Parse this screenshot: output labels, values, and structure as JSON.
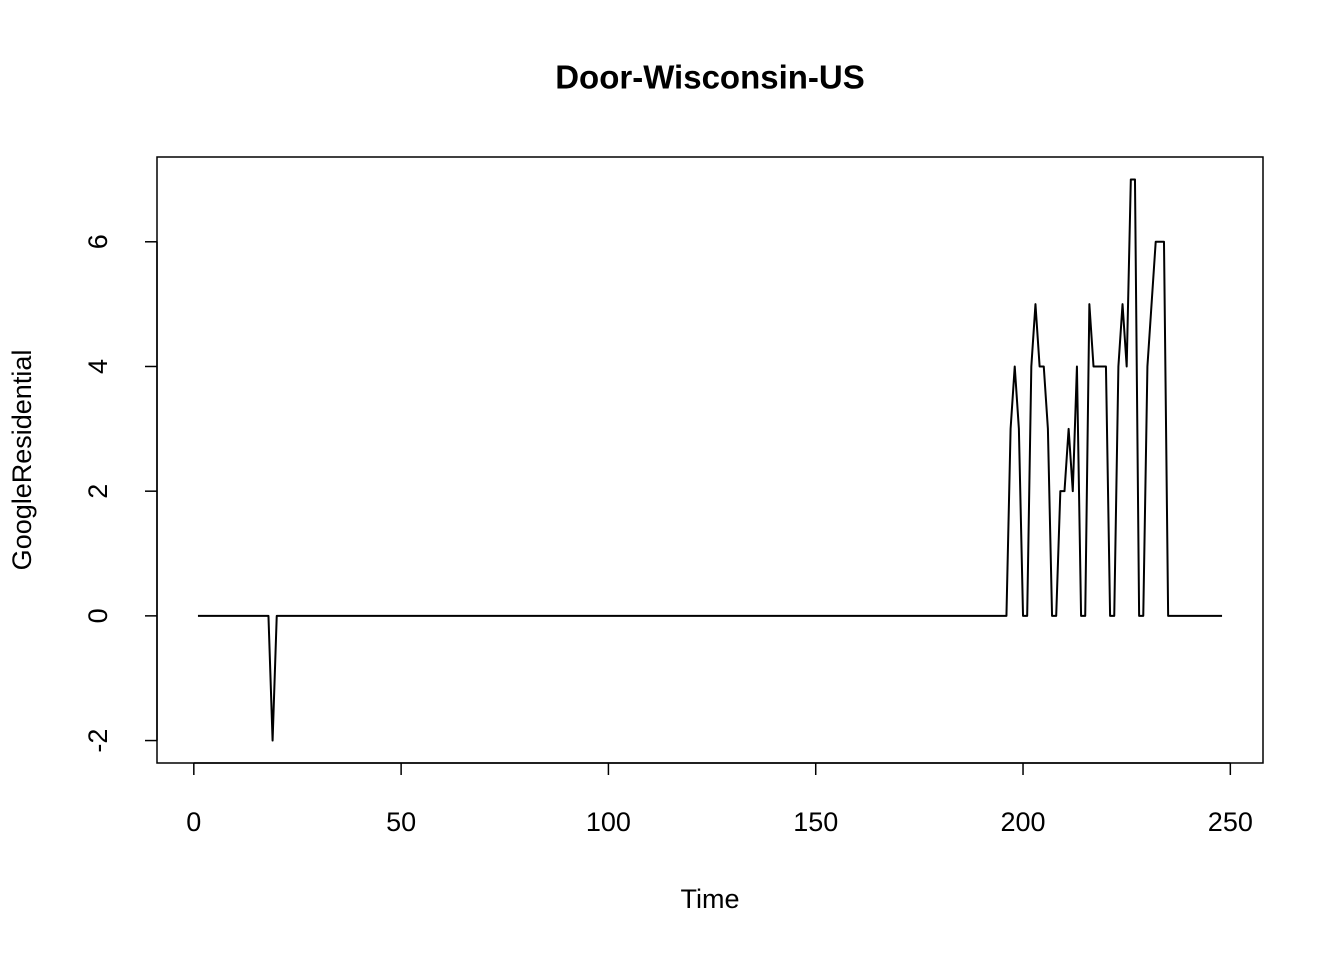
{
  "chart_data": {
    "type": "line",
    "title": "Door-Wisconsin-US",
    "x_label": "Time",
    "y_label": "GoogleResidential",
    "color": "#000000",
    "x": [
      1,
      2,
      3,
      4,
      5,
      6,
      7,
      8,
      9,
      10,
      11,
      12,
      13,
      14,
      15,
      16,
      17,
      18,
      19,
      20,
      21,
      22,
      23,
      24,
      25,
      26,
      27,
      28,
      29,
      30,
      31,
      32,
      33,
      34,
      35,
      36,
      37,
      38,
      39,
      40,
      41,
      42,
      43,
      44,
      45,
      46,
      47,
      48,
      49,
      50,
      51,
      52,
      53,
      54,
      55,
      56,
      57,
      58,
      59,
      60,
      61,
      62,
      63,
      64,
      65,
      66,
      67,
      68,
      69,
      70,
      71,
      72,
      73,
      74,
      75,
      76,
      77,
      78,
      79,
      80,
      81,
      82,
      83,
      84,
      85,
      86,
      87,
      88,
      89,
      90,
      91,
      92,
      93,
      94,
      95,
      96,
      97,
      98,
      99,
      100,
      101,
      102,
      103,
      104,
      105,
      106,
      107,
      108,
      109,
      110,
      111,
      112,
      113,
      114,
      115,
      116,
      117,
      118,
      119,
      120,
      121,
      122,
      123,
      124,
      125,
      126,
      127,
      128,
      129,
      130,
      131,
      132,
      133,
      134,
      135,
      136,
      137,
      138,
      139,
      140,
      141,
      142,
      143,
      144,
      145,
      146,
      147,
      148,
      149,
      150,
      151,
      152,
      153,
      154,
      155,
      156,
      157,
      158,
      159,
      160,
      161,
      162,
      163,
      164,
      165,
      166,
      167,
      168,
      169,
      170,
      171,
      172,
      173,
      174,
      175,
      176,
      177,
      178,
      179,
      180,
      181,
      182,
      183,
      184,
      185,
      186,
      187,
      188,
      189,
      190,
      191,
      192,
      193,
      194,
      195,
      196,
      197,
      198,
      199,
      200,
      201,
      202,
      203,
      204,
      205,
      206,
      207,
      208,
      209,
      210,
      211,
      212,
      213,
      214,
      215,
      216,
      217,
      218,
      219,
      220,
      221,
      222,
      223,
      224,
      225,
      226,
      227,
      228,
      229,
      230,
      231,
      232,
      233,
      234,
      235,
      236,
      237,
      238,
      239,
      240,
      241,
      242,
      243,
      244,
      245,
      246,
      247,
      248
    ],
    "values": [
      0,
      0,
      0,
      0,
      0,
      0,
      0,
      0,
      0,
      0,
      0,
      0,
      0,
      0,
      0,
      0,
      0,
      0,
      -2,
      0,
      0,
      0,
      0,
      0,
      0,
      0,
      0,
      0,
      0,
      0,
      0,
      0,
      0,
      0,
      0,
      0,
      0,
      0,
      0,
      0,
      0,
      0,
      0,
      0,
      0,
      0,
      0,
      0,
      0,
      0,
      0,
      0,
      0,
      0,
      0,
      0,
      0,
      0,
      0,
      0,
      0,
      0,
      0,
      0,
      0,
      0,
      0,
      0,
      0,
      0,
      0,
      0,
      0,
      0,
      0,
      0,
      0,
      0,
      0,
      0,
      0,
      0,
      0,
      0,
      0,
      0,
      0,
      0,
      0,
      0,
      0,
      0,
      0,
      0,
      0,
      0,
      0,
      0,
      0,
      0,
      0,
      0,
      0,
      0,
      0,
      0,
      0,
      0,
      0,
      0,
      0,
      0,
      0,
      0,
      0,
      0,
      0,
      0,
      0,
      0,
      0,
      0,
      0,
      0,
      0,
      0,
      0,
      0,
      0,
      0,
      0,
      0,
      0,
      0,
      0,
      0,
      0,
      0,
      0,
      0,
      0,
      0,
      0,
      0,
      0,
      0,
      0,
      0,
      0,
      0,
      0,
      0,
      0,
      0,
      0,
      0,
      0,
      0,
      0,
      0,
      0,
      0,
      0,
      0,
      0,
      0,
      0,
      0,
      0,
      0,
      0,
      0,
      0,
      0,
      0,
      0,
      0,
      0,
      0,
      0,
      0,
      0,
      0,
      0,
      0,
      0,
      0,
      0,
      0,
      0,
      0,
      0,
      0,
      0,
      0,
      0,
      3,
      4,
      3,
      0,
      0,
      4,
      5,
      4,
      4,
      3,
      0,
      0,
      2,
      2,
      3,
      2,
      4,
      0,
      0,
      5,
      4,
      4,
      4,
      4,
      0,
      0,
      4,
      5,
      4,
      7,
      7,
      0,
      0,
      4,
      5,
      6,
      6,
      6,
      0,
      0,
      0,
      0,
      0,
      0,
      0,
      0,
      0,
      0,
      0,
      0,
      0,
      0
    ],
    "xlim": [
      -8.88,
      257.88
    ],
    "ylim": [
      -2.36,
      7.36
    ],
    "xticks": [
      0,
      50,
      100,
      150,
      200,
      250
    ],
    "yticks": [
      -2,
      0,
      2,
      4,
      6
    ]
  }
}
